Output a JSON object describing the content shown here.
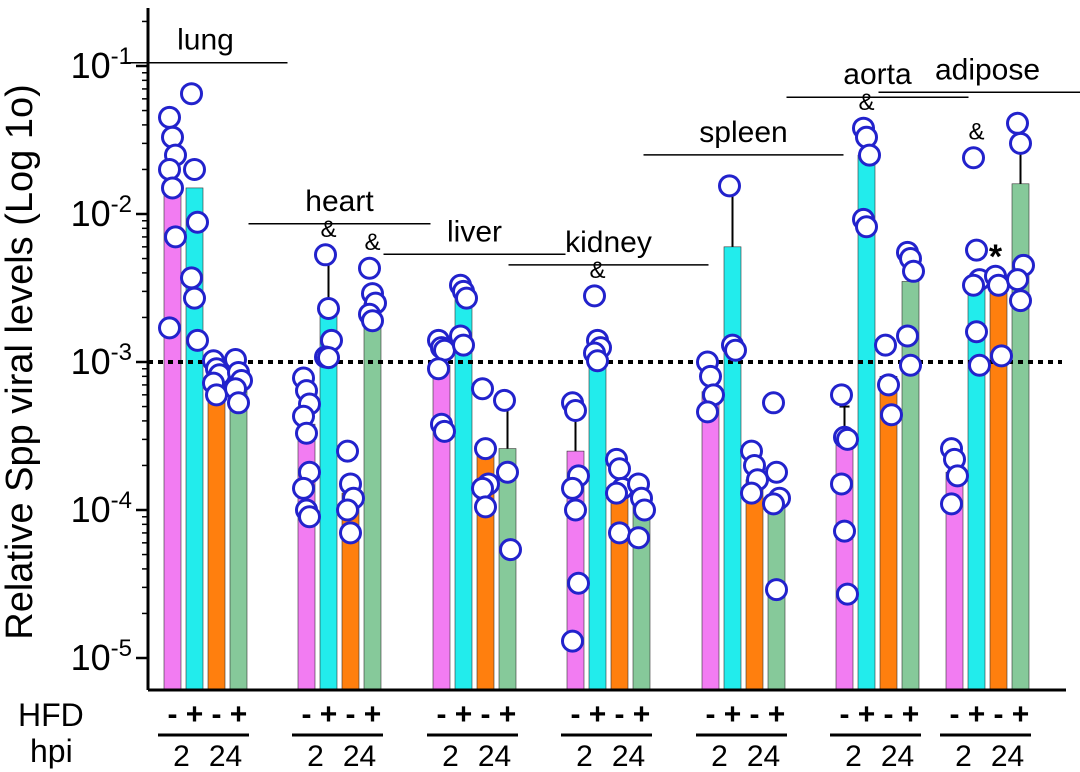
{
  "chart_data": {
    "type": "bar",
    "title": "",
    "ylabel": "Relative Spp viral levels (Log 1o)",
    "xlabel": "",
    "yscale": "log",
    "ylim": [
      5.5e-06,
      0.2
    ],
    "yticks": [
      {
        "value": 0.1,
        "base": "10",
        "exp": "-1"
      },
      {
        "value": 0.01,
        "base": "10",
        "exp": "-2"
      },
      {
        "value": 0.001,
        "base": "10",
        "exp": "-3"
      },
      {
        "value": 0.0001,
        "base": "10",
        "exp": "-4"
      },
      {
        "value": 1e-05,
        "base": "10",
        "exp": "-5"
      }
    ],
    "threshold": 0.001,
    "series": [
      {
        "name": "HFD - / 2 hpi",
        "color": "#f27cf2"
      },
      {
        "name": "HFD + / 2 hpi",
        "color": "#22ecec"
      },
      {
        "name": "HFD - / 24 hpi",
        "color": "#ff7f0e"
      },
      {
        "name": "HFD + / 24 hpi",
        "color": "#86c99a"
      }
    ],
    "row_labels": {
      "hfd": "HFD",
      "hpi": "hpi"
    },
    "groups": [
      {
        "label": "lung",
        "bars": [
          {
            "value": 0.015,
            "err": null,
            "points": [
              0.045,
              0.033,
              0.025,
              0.02,
              0.015,
              0.007,
              0.0017
            ],
            "annot": ""
          },
          {
            "value": 0.015,
            "err": null,
            "points": [
              0.065,
              0.02,
              0.0088,
              0.0037,
              0.0027,
              0.0014
            ],
            "annot": ""
          },
          {
            "value": 0.0009,
            "err": null,
            "points": [
              0.00102,
              0.0009,
              0.00082,
              0.00072,
              0.0006
            ],
            "annot": ""
          },
          {
            "value": 0.00075,
            "err": null,
            "points": [
              0.00104,
              0.00085,
              0.00075,
              0.00066,
              0.00053
            ],
            "annot": ""
          }
        ],
        "hpi": [
          "2",
          "24"
        ]
      },
      {
        "label": "heart",
        "bars": [
          {
            "value": 0.00038,
            "err": null,
            "points": [
              0.00078,
              0.00064,
              0.00052,
              0.00043,
              0.00033,
              0.00018,
              0.00014,
              0.0001,
              9e-05
            ],
            "annot": ""
          },
          {
            "value": 0.0025,
            "err": 0.0048,
            "points": [
              0.0053,
              0.0023,
              0.0014,
              0.00108,
              0.00107
            ],
            "annot": "&"
          },
          {
            "value": 0.00013,
            "err": null,
            "points": [
              0.00025,
              0.00015,
              0.00012,
              0.0001,
              7e-05
            ],
            "annot": ""
          },
          {
            "value": 0.0025,
            "err": null,
            "points": [
              0.0043,
              0.0029,
              0.0025,
              0.0021,
              0.0019
            ],
            "annot": "&"
          }
        ],
        "hpi": [
          "2",
          "24"
        ]
      },
      {
        "label": "liver",
        "bars": [
          {
            "value": 0.00095,
            "err": null,
            "points": [
              0.0014,
              0.00125,
              0.0012,
              0.0009,
              0.00038,
              0.00034
            ],
            "annot": ""
          },
          {
            "value": 0.0028,
            "err": null,
            "points": [
              0.0033,
              0.003,
              0.0027,
              0.0015,
              0.0013
            ],
            "annot": ""
          },
          {
            "value": 0.00025,
            "err": null,
            "points": [
              0.00066,
              0.00026,
              0.00015,
              0.00014,
              0.000105
            ],
            "annot": ""
          },
          {
            "value": 0.00026,
            "err": 0.00055,
            "points": [
              0.00055,
              0.00018,
              5.4e-05
            ],
            "annot": ""
          }
        ],
        "hpi": [
          "2",
          "24"
        ]
      },
      {
        "label": "kidney",
        "bars": [
          {
            "value": 0.00025,
            "err": 0.00055,
            "points": [
              0.00053,
              0.00047,
              0.00017,
              0.00014,
              0.0001,
              3.2e-05,
              1.3e-05
            ],
            "annot": ""
          },
          {
            "value": 0.0012,
            "err": null,
            "points": [
              0.0028,
              0.0014,
              0.00125,
              0.00115,
              0.00102
            ],
            "annot": "&"
          },
          {
            "value": 0.00015,
            "err": null,
            "points": [
              0.00022,
              0.00019,
              0.00014,
              0.00013,
              7e-05
            ],
            "annot": ""
          },
          {
            "value": 0.00011,
            "err": null,
            "points": [
              0.00015,
              0.00012,
              0.0001,
              6.5e-05
            ],
            "annot": ""
          }
        ],
        "hpi": [
          "2",
          "24"
        ]
      },
      {
        "label": "spleen",
        "bars": [
          {
            "value": 0.00063,
            "err": null,
            "points": [
              0.001,
              0.0008,
              0.0006,
              0.00046
            ],
            "annot": ""
          },
          {
            "value": 0.006,
            "err": 0.014,
            "points": [
              0.0155,
              0.0013,
              0.0012
            ],
            "annot": ""
          },
          {
            "value": 0.00016,
            "err": null,
            "points": [
              0.00025,
              0.0002,
              0.00016,
              0.00013
            ],
            "annot": ""
          },
          {
            "value": 0.00012,
            "err": null,
            "points": [
              0.00053,
              0.00018,
              0.00012,
              0.00011,
              2.9e-05
            ],
            "annot": ""
          }
        ],
        "hpi": [
          "2",
          "24"
        ]
      },
      {
        "label": "aorta",
        "bars": [
          {
            "value": 0.00033,
            "err": 0.0005,
            "points": [
              0.0006,
              0.00031,
              0.0003,
              0.00015,
              7.2e-05,
              2.7e-05
            ],
            "annot": ""
          },
          {
            "value": 0.025,
            "err": null,
            "points": [
              0.038,
              0.033,
              0.025,
              0.0092,
              0.0082
            ],
            "annot": "&"
          },
          {
            "value": 0.0008,
            "err": null,
            "points": [
              0.0013,
              0.0007,
              0.00044
            ],
            "annot": ""
          },
          {
            "value": 0.0035,
            "err": null,
            "points": [
              0.0055,
              0.005,
              0.0041,
              0.0015,
              0.00095
            ],
            "annot": ""
          }
        ],
        "hpi": [
          "2",
          "24"
        ]
      },
      {
        "label": "adipose",
        "bars": [
          {
            "value": 0.00018,
            "err": null,
            "points": [
              0.00026,
              0.00022,
              0.00017,
              0.00011
            ],
            "annot": ""
          },
          {
            "value": 0.0035,
            "err": null,
            "points": [
              0.024,
              0.0057,
              0.0036,
              0.0033,
              0.0016,
              0.00095
            ],
            "annot": "&"
          },
          {
            "value": 0.003,
            "err": null,
            "points": [
              0.0038,
              0.0033,
              0.0011
            ],
            "annot": "*"
          },
          {
            "value": 0.016,
            "err": 0.03,
            "points": [
              0.041,
              0.03,
              0.0045,
              0.0036,
              0.0026
            ],
            "annot": ""
          }
        ],
        "hpi": [
          "2",
          "24"
        ]
      }
    ],
    "signs": [
      "-",
      "+",
      "-",
      "+"
    ]
  }
}
